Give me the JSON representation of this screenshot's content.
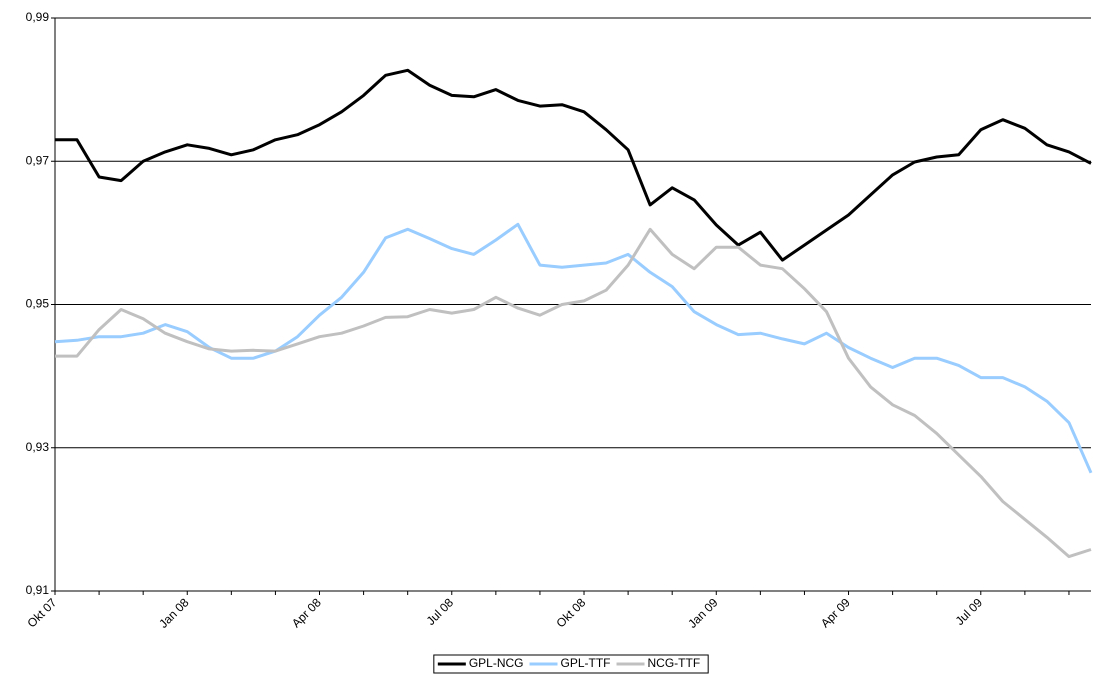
{
  "chart_data": {
    "type": "line",
    "categories": [
      "Okt 07",
      null,
      null,
      null,
      null,
      null,
      "Jan 08",
      null,
      null,
      null,
      null,
      null,
      "Apr 08",
      null,
      null,
      null,
      null,
      null,
      "Jul 08",
      null,
      null,
      null,
      null,
      null,
      "Okt 08",
      null,
      null,
      null,
      null,
      null,
      "Jan 09",
      null,
      null,
      null,
      null,
      null,
      "Apr 09",
      null,
      null,
      null,
      null,
      null,
      "Jul 09",
      null,
      null,
      null,
      null,
      null
    ],
    "series": [
      {
        "name": "GPL-NCG",
        "color": "#000000",
        "values": [
          0.973,
          0.973,
          0.9678,
          0.9673,
          0.97,
          0.9713,
          0.9723,
          0.9718,
          0.9709,
          0.9716,
          0.973,
          0.9737,
          0.9751,
          0.9769,
          0.9792,
          0.982,
          0.9827,
          0.9806,
          0.9792,
          0.979,
          0.98,
          0.9785,
          0.9777,
          0.9779,
          0.9769,
          0.9744,
          0.9716,
          0.9639,
          0.9663,
          0.9646,
          0.9611,
          0.9583,
          0.9601,
          0.9562,
          0.9583,
          0.9604,
          0.9625,
          0.9653,
          0.9681,
          0.9699,
          0.9706,
          0.9709,
          0.9744,
          0.9758,
          0.9746,
          0.9723,
          0.9713,
          0.9697
        ]
      },
      {
        "name": "GPL-TTF",
        "color": "#99ccff",
        "values": [
          0.9448,
          0.945,
          0.9455,
          0.9455,
          0.946,
          0.9472,
          0.9462,
          0.944,
          0.9425,
          0.9425,
          0.9435,
          0.9455,
          0.9485,
          0.951,
          0.9545,
          0.9593,
          0.9605,
          0.9592,
          0.9578,
          0.957,
          0.959,
          0.9612,
          0.9555,
          0.9552,
          0.9555,
          0.9558,
          0.957,
          0.9545,
          0.9525,
          0.949,
          0.9472,
          0.9458,
          0.946,
          0.9452,
          0.9445,
          0.946,
          0.944,
          0.9425,
          0.9412,
          0.9425,
          0.9425,
          0.9415,
          0.9398,
          0.9398,
          0.9385,
          0.9365,
          0.9335,
          0.9265
        ]
      },
      {
        "name": "NCG-TTF",
        "color": "#c0c0c0",
        "values": [
          0.9428,
          0.9428,
          0.9465,
          0.9493,
          0.948,
          0.946,
          0.9448,
          0.9438,
          0.9435,
          0.9436,
          0.9435,
          0.9445,
          0.9455,
          0.946,
          0.947,
          0.9482,
          0.9483,
          0.9493,
          0.9488,
          0.9493,
          0.951,
          0.9495,
          0.9485,
          0.95,
          0.9505,
          0.952,
          0.9555,
          0.9605,
          0.957,
          0.955,
          0.958,
          0.958,
          0.9555,
          0.955,
          0.9522,
          0.949,
          0.9425,
          0.9385,
          0.936,
          0.9345,
          0.932,
          0.929,
          0.926,
          0.9225,
          0.92,
          0.9175,
          0.9148,
          0.9158
        ]
      }
    ],
    "ylim": [
      0.91,
      0.99
    ],
    "yticks": [
      {
        "value": 0.91,
        "label": "0,91"
      },
      {
        "value": 0.93,
        "label": "0,93"
      },
      {
        "value": 0.95,
        "label": "0,95"
      },
      {
        "value": 0.97,
        "label": "0,97"
      },
      {
        "value": 0.99,
        "label": "0,99"
      }
    ],
    "grid": true,
    "legend": "bottom"
  }
}
